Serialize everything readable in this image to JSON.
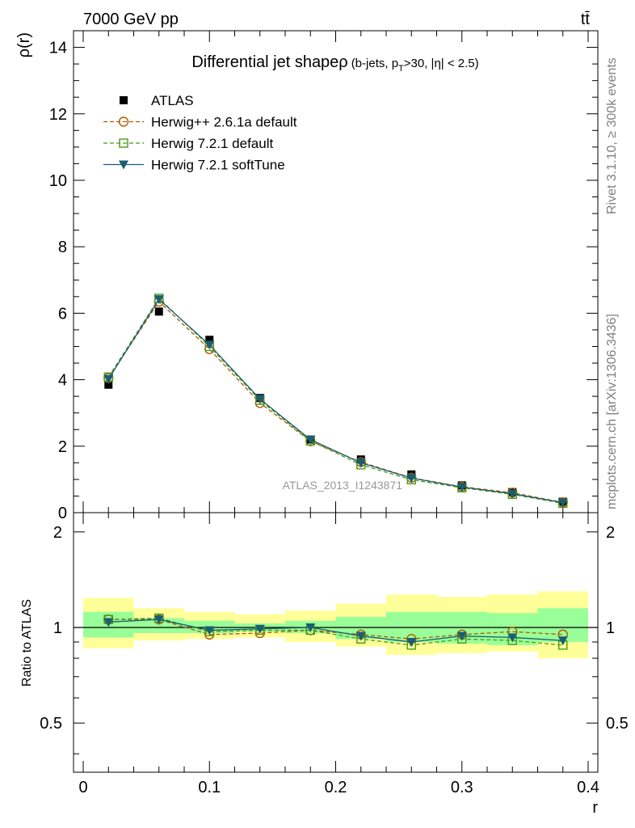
{
  "header": {
    "energy_label": "7000 GeV pp",
    "process_label": "tt̄",
    "rivet_label": "Rivet 3.1.10, ≥ 300k events",
    "mcplots_label": "mcplots.cern.ch [arXiv:1306.3436]",
    "analysis_label": "ATLAS_2013_I1243871"
  },
  "chart_data": [
    {
      "type": "scatter",
      "title_main": "Differential jet shapeρ",
      "title_sub_a": "(b-jets, p",
      "title_sub_sub": "T",
      "title_sub_b": ">30, |η| < 2.5)",
      "xlabel": "",
      "ylabel": "ρ(r)",
      "xlim": [
        0,
        0.4
      ],
      "ylim": [
        0,
        14.5
      ],
      "yticks": [
        0,
        2,
        4,
        6,
        8,
        10,
        12,
        14
      ],
      "ytick_labels": [
        "0",
        "2",
        "4",
        "6",
        "8",
        "10",
        "12",
        "14"
      ],
      "x": [
        0.02,
        0.06,
        0.1,
        0.14,
        0.18,
        0.22,
        0.26,
        0.3,
        0.34,
        0.38
      ],
      "legend_position": "top-left",
      "series": [
        {
          "name": "ATLAS",
          "color": "#000000",
          "marker": "filled-square",
          "values": [
            3.85,
            6.05,
            5.2,
            3.45,
            2.2,
            1.6,
            1.15,
            0.82,
            0.62,
            0.33
          ]
        },
        {
          "name": "Herwig++ 2.6.1a default",
          "color": "#b35900",
          "marker": "open-circle",
          "line": "dashed",
          "values": [
            4.05,
            6.35,
            4.92,
            3.3,
            2.15,
            1.52,
            1.05,
            0.78,
            0.6,
            0.31
          ]
        },
        {
          "name": "Herwig 7.2.1 default",
          "color": "#4c9a1f",
          "marker": "open-square",
          "line": "dashed",
          "values": [
            4.08,
            6.45,
            5.0,
            3.38,
            2.16,
            1.44,
            0.99,
            0.75,
            0.55,
            0.28
          ]
        },
        {
          "name": "Herwig 7.2.1 softTune",
          "color": "#1a5e73",
          "marker": "filled-triangle-down",
          "line": "solid",
          "values": [
            4.02,
            6.42,
            5.05,
            3.42,
            2.2,
            1.5,
            1.04,
            0.77,
            0.57,
            0.3
          ]
        }
      ]
    },
    {
      "type": "scatter",
      "xlabel": "r",
      "ylabel": "Ratio to ATLAS",
      "xlim": [
        0,
        0.4
      ],
      "ylim": [
        0.35,
        2.3
      ],
      "yticks": [
        0.5,
        1,
        2
      ],
      "ytick_labels": [
        "0.5",
        "1",
        "2"
      ],
      "xticks": [
        0,
        0.1,
        0.2,
        0.3,
        0.4
      ],
      "xtick_labels": [
        "0",
        "0.1",
        "0.2",
        "0.3",
        "0.4"
      ],
      "x": [
        0.02,
        0.06,
        0.1,
        0.14,
        0.18,
        0.22,
        0.26,
        0.3,
        0.34,
        0.38
      ],
      "bin_edges": [
        0,
        0.04,
        0.08,
        0.12,
        0.16,
        0.2,
        0.24,
        0.28,
        0.32,
        0.36,
        0.4
      ],
      "band_inner": [
        [
          0.93,
          1.12
        ],
        [
          0.96,
          1.07
        ],
        [
          0.96,
          1.05
        ],
        [
          0.97,
          1.03
        ],
        [
          0.96,
          1.05
        ],
        [
          0.92,
          1.08
        ],
        [
          0.9,
          1.12
        ],
        [
          0.89,
          1.12
        ],
        [
          0.88,
          1.11
        ],
        [
          0.9,
          1.15
        ]
      ],
      "band_outer": [
        [
          0.86,
          1.24
        ],
        [
          0.91,
          1.15
        ],
        [
          0.92,
          1.12
        ],
        [
          0.93,
          1.1
        ],
        [
          0.9,
          1.13
        ],
        [
          0.87,
          1.19
        ],
        [
          0.82,
          1.27
        ],
        [
          0.83,
          1.25
        ],
        [
          0.84,
          1.27
        ],
        [
          0.8,
          1.3
        ]
      ],
      "series": [
        {
          "name": "Herwig++ 2.6.1a default",
          "color": "#b35900",
          "marker": "open-circle",
          "line": "dashed",
          "values": [
            1.06,
            1.06,
            0.95,
            0.96,
            0.98,
            0.95,
            0.92,
            0.95,
            0.97,
            0.95
          ]
        },
        {
          "name": "Herwig 7.2.1 default",
          "color": "#4c9a1f",
          "marker": "open-square",
          "line": "dashed",
          "values": [
            1.06,
            1.07,
            0.97,
            0.98,
            0.98,
            0.92,
            0.88,
            0.92,
            0.91,
            0.88
          ]
        },
        {
          "name": "Herwig 7.2.1 softTune",
          "color": "#1a5e73",
          "marker": "filled-triangle-down",
          "line": "solid",
          "values": [
            1.04,
            1.06,
            0.98,
            0.99,
            1.0,
            0.94,
            0.9,
            0.94,
            0.93,
            0.91
          ]
        }
      ]
    }
  ]
}
